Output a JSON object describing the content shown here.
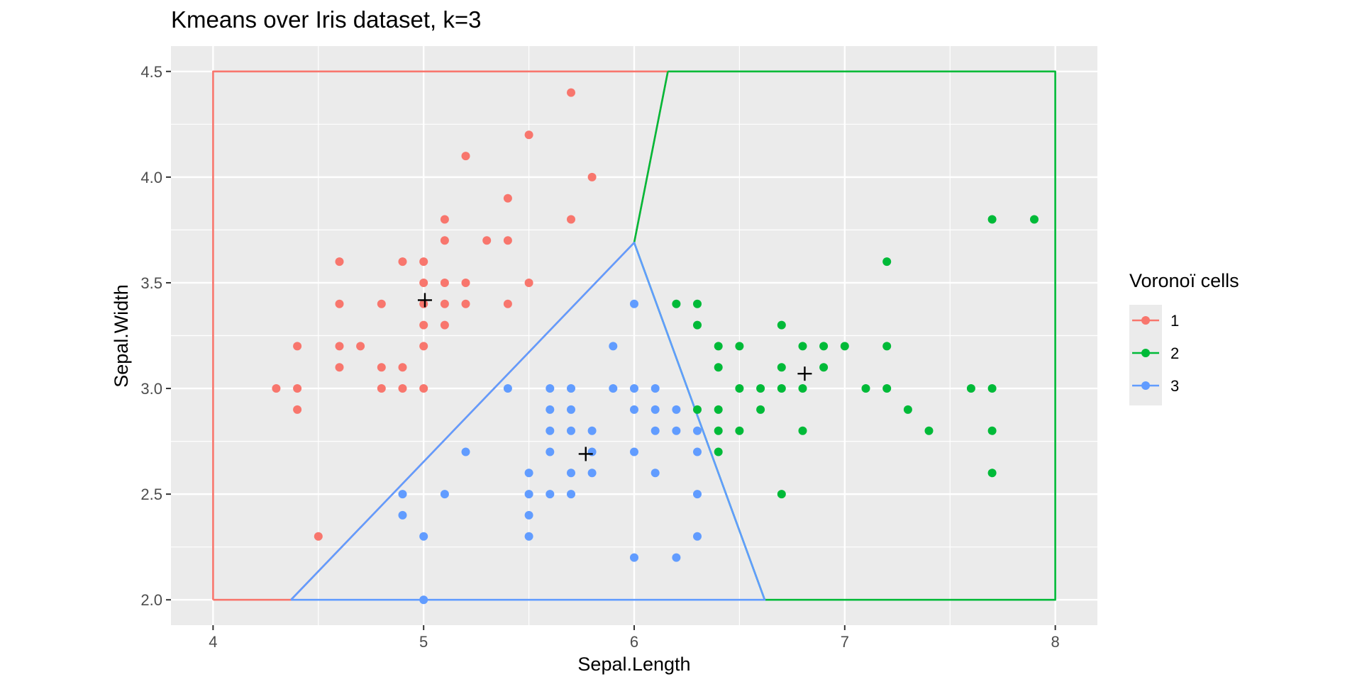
{
  "chart_data": {
    "type": "scatter",
    "title": "Kmeans over Iris dataset, k=3",
    "xlabel": "Sepal.Length",
    "ylabel": "Sepal.Width",
    "xlim": [
      3.8,
      8.2
    ],
    "ylim": [
      1.88,
      4.62
    ],
    "x_ticks": [
      4,
      5,
      6,
      7,
      8
    ],
    "y_ticks": [
      2.0,
      2.5,
      3.0,
      3.5,
      4.0,
      4.5
    ],
    "x_tick_labels": [
      "4",
      "5",
      "6",
      "7",
      "8"
    ],
    "y_tick_labels": [
      "2.0",
      "2.5",
      "3.0",
      "3.5",
      "4.0",
      "4.5"
    ],
    "grid": true,
    "background": "#ebebeb",
    "legend": {
      "title": "Voronoï cells",
      "placement": "right",
      "items": [
        {
          "label": "1",
          "color": "#f8766d"
        },
        {
          "label": "2",
          "color": "#00ba38"
        },
        {
          "label": "3",
          "color": "#619cff"
        }
      ]
    },
    "series": [
      {
        "name": "1",
        "color": "#f8766d",
        "cell": [
          [
            4.0,
            2.0
          ],
          [
            4.37,
            2.0
          ],
          [
            6.0,
            3.69
          ],
          [
            6.16,
            4.5
          ],
          [
            4.0,
            4.5
          ],
          [
            4.0,
            2.0
          ]
        ],
        "points": [
          [
            4.3,
            3.0
          ],
          [
            4.4,
            3.2
          ],
          [
            4.4,
            3.0
          ],
          [
            4.4,
            2.9
          ],
          [
            4.5,
            2.3
          ],
          [
            4.6,
            3.6
          ],
          [
            4.6,
            3.4
          ],
          [
            4.6,
            3.2
          ],
          [
            4.6,
            3.1
          ],
          [
            4.7,
            3.2
          ],
          [
            4.8,
            3.4
          ],
          [
            4.8,
            3.1
          ],
          [
            4.8,
            3.0
          ],
          [
            4.9,
            3.6
          ],
          [
            4.9,
            3.1
          ],
          [
            4.9,
            3.0
          ],
          [
            5.0,
            3.6
          ],
          [
            5.0,
            3.5
          ],
          [
            5.0,
            3.4
          ],
          [
            5.0,
            3.3
          ],
          [
            5.0,
            3.2
          ],
          [
            5.0,
            3.0
          ],
          [
            5.1,
            3.8
          ],
          [
            5.1,
            3.7
          ],
          [
            5.1,
            3.5
          ],
          [
            5.1,
            3.4
          ],
          [
            5.1,
            3.3
          ],
          [
            5.2,
            4.1
          ],
          [
            5.2,
            3.5
          ],
          [
            5.2,
            3.4
          ],
          [
            5.3,
            3.7
          ],
          [
            5.4,
            3.9
          ],
          [
            5.4,
            3.7
          ],
          [
            5.4,
            3.4
          ],
          [
            5.5,
            4.2
          ],
          [
            5.5,
            3.5
          ],
          [
            5.7,
            4.4
          ],
          [
            5.7,
            3.8
          ],
          [
            5.8,
            4.0
          ]
        ]
      },
      {
        "name": "2",
        "color": "#00ba38",
        "cell": [
          [
            6.16,
            4.5
          ],
          [
            8.0,
            4.5
          ],
          [
            8.0,
            2.0
          ],
          [
            6.62,
            2.0
          ],
          [
            6.0,
            3.69
          ],
          [
            6.16,
            4.5
          ]
        ],
        "points": [
          [
            6.2,
            3.4
          ],
          [
            6.3,
            3.4
          ],
          [
            6.3,
            3.3
          ],
          [
            6.3,
            2.9
          ],
          [
            6.4,
            3.2
          ],
          [
            6.4,
            3.1
          ],
          [
            6.4,
            2.9
          ],
          [
            6.4,
            2.8
          ],
          [
            6.4,
            2.7
          ],
          [
            6.5,
            3.2
          ],
          [
            6.5,
            3.0
          ],
          [
            6.5,
            2.8
          ],
          [
            6.6,
            3.0
          ],
          [
            6.6,
            2.9
          ],
          [
            6.7,
            3.3
          ],
          [
            6.7,
            3.1
          ],
          [
            6.7,
            3.0
          ],
          [
            6.7,
            2.5
          ],
          [
            6.8,
            3.2
          ],
          [
            6.8,
            3.0
          ],
          [
            6.8,
            2.8
          ],
          [
            6.9,
            3.2
          ],
          [
            6.9,
            3.1
          ],
          [
            7.0,
            3.2
          ],
          [
            7.1,
            3.0
          ],
          [
            7.2,
            3.6
          ],
          [
            7.2,
            3.2
          ],
          [
            7.2,
            3.0
          ],
          [
            7.3,
            2.9
          ],
          [
            7.4,
            2.8
          ],
          [
            7.6,
            3.0
          ],
          [
            7.7,
            3.8
          ],
          [
            7.7,
            3.0
          ],
          [
            7.7,
            2.8
          ],
          [
            7.7,
            2.6
          ],
          [
            7.9,
            3.8
          ]
        ]
      },
      {
        "name": "3",
        "color": "#619cff",
        "cell": [
          [
            4.37,
            2.0
          ],
          [
            6.62,
            2.0
          ],
          [
            6.0,
            3.69
          ],
          [
            4.37,
            2.0
          ]
        ],
        "points": [
          [
            4.9,
            2.5
          ],
          [
            4.9,
            2.4
          ],
          [
            5.0,
            2.3
          ],
          [
            5.0,
            2.0
          ],
          [
            5.1,
            2.5
          ],
          [
            5.2,
            2.7
          ],
          [
            5.4,
            3.0
          ],
          [
            5.5,
            2.6
          ],
          [
            5.5,
            2.5
          ],
          [
            5.5,
            2.4
          ],
          [
            5.5,
            2.3
          ],
          [
            5.6,
            3.0
          ],
          [
            5.6,
            2.9
          ],
          [
            5.6,
            2.8
          ],
          [
            5.6,
            2.7
          ],
          [
            5.6,
            2.5
          ],
          [
            5.7,
            3.0
          ],
          [
            5.7,
            2.9
          ],
          [
            5.7,
            2.8
          ],
          [
            5.7,
            2.6
          ],
          [
            5.7,
            2.5
          ],
          [
            5.8,
            2.8
          ],
          [
            5.8,
            2.7
          ],
          [
            5.8,
            2.6
          ],
          [
            5.9,
            3.2
          ],
          [
            5.9,
            3.0
          ],
          [
            6.0,
            3.4
          ],
          [
            6.0,
            3.0
          ],
          [
            6.0,
            2.9
          ],
          [
            6.0,
            2.7
          ],
          [
            6.0,
            2.2
          ],
          [
            6.1,
            3.0
          ],
          [
            6.1,
            2.9
          ],
          [
            6.1,
            2.8
          ],
          [
            6.1,
            2.6
          ],
          [
            6.2,
            2.9
          ],
          [
            6.2,
            2.8
          ],
          [
            6.2,
            2.2
          ],
          [
            6.3,
            2.8
          ],
          [
            6.3,
            2.7
          ],
          [
            6.3,
            2.5
          ],
          [
            6.3,
            2.3
          ]
        ]
      }
    ],
    "centroids": [
      [
        5.006,
        3.418
      ],
      [
        6.81,
        3.07
      ],
      [
        5.77,
        2.69
      ]
    ]
  }
}
